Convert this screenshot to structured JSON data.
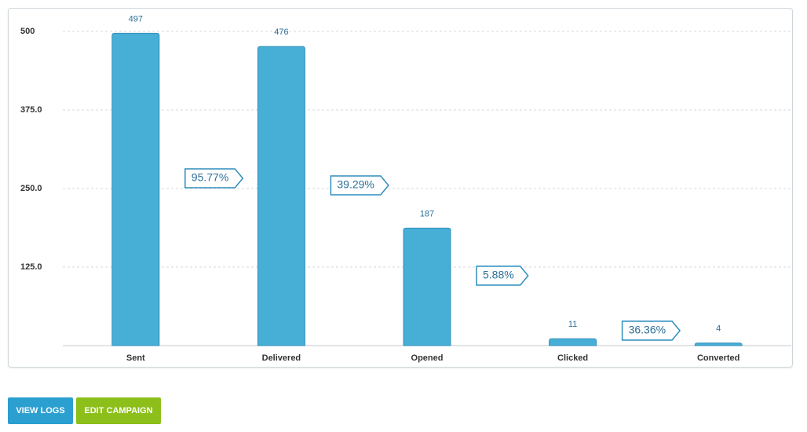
{
  "chart_data": {
    "type": "bar",
    "categories": [
      "Sent",
      "Delivered",
      "Opened",
      "Clicked",
      "Converted"
    ],
    "values": [
      497,
      476,
      187,
      11,
      4
    ],
    "color": "#47aed6",
    "ylim": [
      0,
      500
    ],
    "yticks": [
      {
        "value": 125,
        "label": "125.0"
      },
      {
        "value": 250,
        "label": "250.0"
      },
      {
        "value": 375,
        "label": "375.0"
      },
      500
    ],
    "grid": true,
    "conversion_rates": {
      "values": [
        95.77,
        39.29,
        5.88,
        36.36
      ],
      "value_labels": [
        "95.77%",
        "39.29%",
        "5.88%",
        "36.36%"
      ]
    }
  },
  "buttons": [
    "VIEW LOGS",
    "EDIT CAMPAIGN"
  ]
}
